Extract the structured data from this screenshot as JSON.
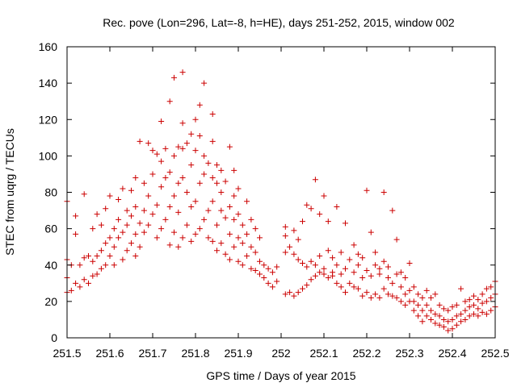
{
  "chart_data": {
    "type": "scatter",
    "title": "Rec. pove (Lon=296, Lat=-8, h=HE), days 251-252, 2015, window 002",
    "xlabel": "GPS time / Days of year 2015",
    "ylabel": "STEC from uqrg / TECUs",
    "xlim": [
      251.5,
      252.5
    ],
    "ylim": [
      0,
      160
    ],
    "xticks": [
      251.5,
      251.6,
      251.7,
      251.8,
      251.9,
      252,
      252.1,
      252.2,
      252.3,
      252.4,
      252.5
    ],
    "xtick_labels": [
      "251.5",
      "251.6",
      "251.7",
      "251.8",
      "251.9",
      "252",
      "252.1",
      "252.2",
      "252.3",
      "252.4",
      "252.5"
    ],
    "yticks": [
      0,
      20,
      40,
      60,
      80,
      100,
      120,
      140,
      160
    ],
    "ytick_labels": [
      "0",
      "20",
      "40",
      "60",
      "80",
      "100",
      "120",
      "140",
      "160"
    ],
    "marker": "+",
    "color": "#cc0000",
    "grid": false,
    "series": [
      {
        "name": "STEC",
        "points": [
          [
            251.5,
            25
          ],
          [
            251.5,
            33
          ],
          [
            251.5,
            43
          ],
          [
            251.5,
            75
          ],
          [
            251.51,
            26
          ],
          [
            251.51,
            40
          ],
          [
            251.52,
            30
          ],
          [
            251.52,
            57
          ],
          [
            251.52,
            67
          ],
          [
            251.53,
            28
          ],
          [
            251.53,
            40
          ],
          [
            251.54,
            32
          ],
          [
            251.54,
            44
          ],
          [
            251.54,
            79
          ],
          [
            251.55,
            30
          ],
          [
            251.55,
            45
          ],
          [
            251.56,
            34
          ],
          [
            251.56,
            42
          ],
          [
            251.56,
            60
          ],
          [
            251.57,
            35
          ],
          [
            251.57,
            45
          ],
          [
            251.57,
            68
          ],
          [
            251.58,
            38
          ],
          [
            251.58,
            48
          ],
          [
            251.58,
            62
          ],
          [
            251.59,
            40
          ],
          [
            251.59,
            52
          ],
          [
            251.59,
            71
          ],
          [
            251.6,
            45
          ],
          [
            251.6,
            55
          ],
          [
            251.6,
            78
          ],
          [
            251.61,
            40
          ],
          [
            251.61,
            50
          ],
          [
            251.61,
            60
          ],
          [
            251.62,
            55
          ],
          [
            251.62,
            65
          ],
          [
            251.62,
            76
          ],
          [
            251.63,
            43
          ],
          [
            251.63,
            58
          ],
          [
            251.63,
            82
          ],
          [
            251.64,
            48
          ],
          [
            251.64,
            62
          ],
          [
            251.64,
            70
          ],
          [
            251.65,
            52
          ],
          [
            251.65,
            67
          ],
          [
            251.65,
            81
          ],
          [
            251.66,
            45
          ],
          [
            251.66,
            57
          ],
          [
            251.66,
            72
          ],
          [
            251.66,
            88
          ],
          [
            251.67,
            50
          ],
          [
            251.67,
            63
          ],
          [
            251.67,
            108
          ],
          [
            251.68,
            58
          ],
          [
            251.68,
            70
          ],
          [
            251.68,
            85
          ],
          [
            251.69,
            62
          ],
          [
            251.69,
            78
          ],
          [
            251.69,
            107
          ],
          [
            251.7,
            68
          ],
          [
            251.7,
            90
          ],
          [
            251.7,
            103
          ],
          [
            251.71,
            55
          ],
          [
            251.71,
            73
          ],
          [
            251.71,
            101
          ],
          [
            251.72,
            60
          ],
          [
            251.72,
            83
          ],
          [
            251.72,
            97
          ],
          [
            251.72,
            119
          ],
          [
            251.73,
            65
          ],
          [
            251.73,
            88
          ],
          [
            251.73,
            104
          ],
          [
            251.74,
            51
          ],
          [
            251.74,
            72
          ],
          [
            251.74,
            91
          ],
          [
            251.74,
            130
          ],
          [
            251.75,
            58
          ],
          [
            251.75,
            78
          ],
          [
            251.75,
            100
          ],
          [
            251.75,
            143
          ],
          [
            251.76,
            50
          ],
          [
            251.76,
            69
          ],
          [
            251.76,
            85
          ],
          [
            251.76,
            105
          ],
          [
            251.77,
            55
          ],
          [
            251.77,
            88
          ],
          [
            251.77,
            104
          ],
          [
            251.77,
            146
          ],
          [
            251.77,
            118
          ],
          [
            251.78,
            62
          ],
          [
            251.78,
            80
          ],
          [
            251.78,
            107
          ],
          [
            251.79,
            53
          ],
          [
            251.79,
            72
          ],
          [
            251.79,
            95
          ],
          [
            251.79,
            112
          ],
          [
            251.8,
            57
          ],
          [
            251.8,
            75
          ],
          [
            251.8,
            103
          ],
          [
            251.8,
            120
          ],
          [
            251.81,
            60
          ],
          [
            251.81,
            85
          ],
          [
            251.81,
            111
          ],
          [
            251.81,
            128
          ],
          [
            251.82,
            65
          ],
          [
            251.82,
            90
          ],
          [
            251.82,
            140
          ],
          [
            251.82,
            100
          ],
          [
            251.83,
            55
          ],
          [
            251.83,
            70
          ],
          [
            251.83,
            96
          ],
          [
            251.84,
            53
          ],
          [
            251.84,
            75
          ],
          [
            251.84,
            88
          ],
          [
            251.84,
            123
          ],
          [
            251.84,
            108
          ],
          [
            251.85,
            48
          ],
          [
            251.85,
            62
          ],
          [
            251.85,
            85
          ],
          [
            251.85,
            95
          ],
          [
            251.86,
            52
          ],
          [
            251.86,
            70
          ],
          [
            251.86,
            80
          ],
          [
            251.86,
            92
          ],
          [
            251.87,
            46
          ],
          [
            251.87,
            66
          ],
          [
            251.87,
            86
          ],
          [
            251.88,
            43
          ],
          [
            251.88,
            57
          ],
          [
            251.88,
            72
          ],
          [
            251.88,
            105
          ],
          [
            251.89,
            50
          ],
          [
            251.89,
            65
          ],
          [
            251.89,
            78
          ],
          [
            251.89,
            92
          ],
          [
            251.9,
            42
          ],
          [
            251.9,
            55
          ],
          [
            251.9,
            68
          ],
          [
            251.9,
            82
          ],
          [
            251.91,
            40
          ],
          [
            251.91,
            52
          ],
          [
            251.91,
            62
          ],
          [
            251.92,
            45
          ],
          [
            251.92,
            57
          ],
          [
            251.92,
            75
          ],
          [
            251.93,
            38
          ],
          [
            251.93,
            50
          ],
          [
            251.93,
            65
          ],
          [
            251.94,
            37
          ],
          [
            251.94,
            47
          ],
          [
            251.94,
            60
          ],
          [
            251.95,
            35
          ],
          [
            251.95,
            42
          ],
          [
            251.95,
            55
          ],
          [
            251.96,
            33
          ],
          [
            251.96,
            40
          ],
          [
            251.97,
            30
          ],
          [
            251.97,
            38
          ],
          [
            251.98,
            28
          ],
          [
            251.98,
            36
          ],
          [
            251.99,
            31
          ],
          [
            251.99,
            39
          ],
          [
            252.01,
            24
          ],
          [
            252.01,
            47
          ],
          [
            252.01,
            56
          ],
          [
            252.01,
            61
          ],
          [
            252.02,
            25
          ],
          [
            252.02,
            50
          ],
          [
            252.03,
            23
          ],
          [
            252.03,
            46
          ],
          [
            252.03,
            59
          ],
          [
            252.04,
            25
          ],
          [
            252.04,
            43
          ],
          [
            252.04,
            54
          ],
          [
            252.05,
            27
          ],
          [
            252.05,
            41
          ],
          [
            252.05,
            64
          ],
          [
            252.06,
            29
          ],
          [
            252.06,
            39
          ],
          [
            252.06,
            73
          ],
          [
            252.07,
            32
          ],
          [
            252.07,
            42
          ],
          [
            252.07,
            71
          ],
          [
            252.08,
            34
          ],
          [
            252.08,
            40
          ],
          [
            252.08,
            87
          ],
          [
            252.09,
            36
          ],
          [
            252.09,
            45
          ],
          [
            252.09,
            68
          ],
          [
            252.1,
            35
          ],
          [
            252.1,
            38
          ],
          [
            252.1,
            78
          ],
          [
            252.11,
            33
          ],
          [
            252.11,
            48
          ],
          [
            252.11,
            64
          ],
          [
            252.12,
            34
          ],
          [
            252.12,
            36
          ],
          [
            252.12,
            44
          ],
          [
            252.13,
            30
          ],
          [
            252.13,
            40
          ],
          [
            252.13,
            72
          ],
          [
            252.14,
            28
          ],
          [
            252.14,
            35
          ],
          [
            252.14,
            47
          ],
          [
            252.15,
            25
          ],
          [
            252.15,
            38
          ],
          [
            252.15,
            63
          ],
          [
            252.16,
            30
          ],
          [
            252.16,
            43
          ],
          [
            252.17,
            28
          ],
          [
            252.17,
            36
          ],
          [
            252.17,
            51
          ],
          [
            252.18,
            27
          ],
          [
            252.18,
            40
          ],
          [
            252.18,
            46
          ],
          [
            252.19,
            23
          ],
          [
            252.19,
            33
          ],
          [
            252.19,
            44
          ],
          [
            252.2,
            25
          ],
          [
            252.2,
            37
          ],
          [
            252.2,
            81
          ],
          [
            252.21,
            22
          ],
          [
            252.21,
            34
          ],
          [
            252.21,
            58
          ],
          [
            252.22,
            24
          ],
          [
            252.22,
            40
          ],
          [
            252.22,
            47
          ],
          [
            252.23,
            22
          ],
          [
            252.23,
            35
          ],
          [
            252.23,
            38
          ],
          [
            252.24,
            27
          ],
          [
            252.24,
            42
          ],
          [
            252.24,
            80
          ],
          [
            252.25,
            24
          ],
          [
            252.25,
            33
          ],
          [
            252.25,
            39
          ],
          [
            252.26,
            23
          ],
          [
            252.26,
            30
          ],
          [
            252.26,
            70
          ],
          [
            252.27,
            22
          ],
          [
            252.27,
            35
          ],
          [
            252.27,
            54
          ],
          [
            252.28,
            20
          ],
          [
            252.28,
            28
          ],
          [
            252.28,
            36
          ],
          [
            252.29,
            18
          ],
          [
            252.29,
            24
          ],
          [
            252.29,
            33
          ],
          [
            252.3,
            20
          ],
          [
            252.3,
            26
          ],
          [
            252.3,
            41
          ],
          [
            252.31,
            15
          ],
          [
            252.31,
            20
          ],
          [
            252.31,
            28
          ],
          [
            252.32,
            12
          ],
          [
            252.32,
            18
          ],
          [
            252.32,
            24
          ],
          [
            252.33,
            9
          ],
          [
            252.33,
            15
          ],
          [
            252.33,
            22
          ],
          [
            252.34,
            12
          ],
          [
            252.34,
            18
          ],
          [
            252.34,
            26
          ],
          [
            252.35,
            10
          ],
          [
            252.35,
            15
          ],
          [
            252.35,
            22
          ],
          [
            252.36,
            8
          ],
          [
            252.36,
            13
          ],
          [
            252.36,
            24
          ],
          [
            252.37,
            7
          ],
          [
            252.37,
            12
          ],
          [
            252.37,
            18
          ],
          [
            252.38,
            6
          ],
          [
            252.38,
            10
          ],
          [
            252.38,
            16
          ],
          [
            252.39,
            4
          ],
          [
            252.39,
            9
          ],
          [
            252.39,
            15
          ],
          [
            252.4,
            5
          ],
          [
            252.4,
            10
          ],
          [
            252.4,
            17
          ],
          [
            252.41,
            7
          ],
          [
            252.41,
            12
          ],
          [
            252.41,
            18
          ],
          [
            252.42,
            9
          ],
          [
            252.42,
            13
          ],
          [
            252.42,
            27
          ],
          [
            252.43,
            10
          ],
          [
            252.43,
            15
          ],
          [
            252.43,
            20
          ],
          [
            252.44,
            12
          ],
          [
            252.44,
            17
          ],
          [
            252.44,
            21
          ],
          [
            252.45,
            13
          ],
          [
            252.45,
            18
          ],
          [
            252.45,
            23
          ],
          [
            252.46,
            12
          ],
          [
            252.46,
            16
          ],
          [
            252.46,
            21
          ],
          [
            252.47,
            14
          ],
          [
            252.47,
            19
          ],
          [
            252.47,
            24
          ],
          [
            252.48,
            13
          ],
          [
            252.48,
            20
          ],
          [
            252.48,
            27
          ],
          [
            252.49,
            15
          ],
          [
            252.49,
            22
          ],
          [
            252.49,
            28
          ],
          [
            252.5,
            17
          ],
          [
            252.5,
            24
          ],
          [
            252.5,
            31
          ]
        ]
      }
    ]
  }
}
